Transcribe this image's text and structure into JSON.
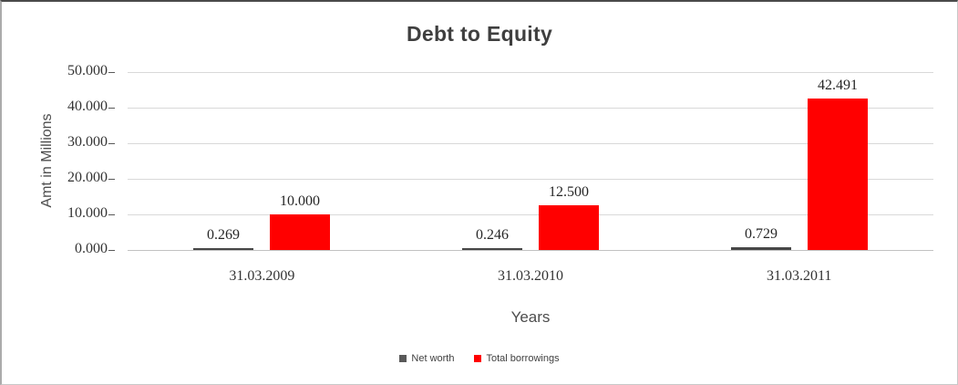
{
  "chart_data": {
    "type": "bar",
    "title": "Debt to Equity",
    "xlabel": "Years",
    "ylabel": "Amt in Millions",
    "categories": [
      "31.03.2009",
      "31.03.2010",
      "31.03.2011"
    ],
    "series": [
      {
        "name": "Net worth",
        "color": "#474747",
        "values": [
          0.269,
          0.246,
          0.729
        ],
        "labels": [
          "0.269",
          "0.246",
          "0.729"
        ]
      },
      {
        "name": "Total borrowings",
        "color": "#ff0000",
        "values": [
          10.0,
          12.5,
          42.491
        ],
        "labels": [
          "10.000",
          "12.500",
          "42.491"
        ]
      }
    ],
    "ylim": [
      0,
      50
    ],
    "yticks": [
      {
        "value": 0,
        "label": "0.000"
      },
      {
        "value": 10,
        "label": "10.000"
      },
      {
        "value": 20,
        "label": "20.000"
      },
      {
        "value": 30,
        "label": "30.000"
      },
      {
        "value": 40,
        "label": "40.000"
      },
      {
        "value": 50,
        "label": "50.000"
      }
    ],
    "grid": true,
    "legend_position": "bottom",
    "colors": {
      "gridline": "#d9d9d9",
      "baseline": "#c2c2c2",
      "tick": "#595959"
    }
  }
}
